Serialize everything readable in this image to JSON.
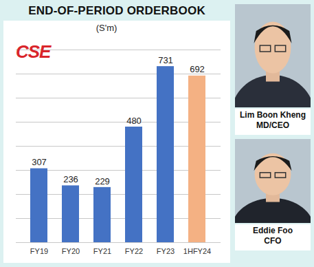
{
  "chart_data": {
    "type": "bar",
    "title": "END-OF-PERIOD ORDERBOOK",
    "subtitle": "(S'm)",
    "categories": [
      "FY19",
      "FY20",
      "FY21",
      "FY22",
      "FY23",
      "1HFY24"
    ],
    "values": [
      307,
      236,
      229,
      480,
      731,
      692
    ],
    "colors": [
      "#4472c4",
      "#4472c4",
      "#4472c4",
      "#4472c4",
      "#4472c4",
      "#f4b183"
    ],
    "ylim": [
      0,
      800
    ],
    "yticks": [
      0,
      100,
      200,
      300,
      400,
      500,
      600,
      700,
      800
    ],
    "grid": true,
    "data_labels": true,
    "tick_labels": "x",
    "annotations": [
      "CSE",
      "Lim Boon Kheng",
      "MD/CEO",
      "Eddie Foo",
      "CFO"
    ]
  }
}
